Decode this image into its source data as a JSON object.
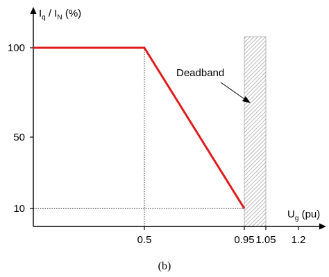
{
  "chart_data": {
    "type": "line",
    "xlabel": {
      "base": "U",
      "sub": "g",
      "rest": " (pu)"
    },
    "ylabel": {
      "a_base": "I",
      "a_sub": "q",
      "sep": " / ",
      "b_base": "I",
      "b_sub": "N",
      "rest": " (%)"
    },
    "x_ticks": [
      "0.5",
      "0.95",
      "1.05",
      "1.2"
    ],
    "x_tick_values": [
      0.5,
      0.95,
      1.05,
      1.2
    ],
    "y_ticks": [
      "100",
      "50",
      "10"
    ],
    "y_tick_values": [
      100,
      50,
      10
    ],
    "series": [
      {
        "color": "#e01b1b",
        "x": [
          0,
          0.5,
          0.95
        ],
        "y": [
          100,
          100,
          10
        ]
      }
    ],
    "reference_lines": [
      {
        "x": [
          0.5,
          0.5
        ],
        "y": [
          0,
          100
        ]
      },
      {
        "x": [
          0,
          0.95
        ],
        "y": [
          10,
          10
        ]
      }
    ],
    "deadband": {
      "x_from": 0.95,
      "x_to": 1.05,
      "label": "Deadband"
    },
    "caption": "(b)"
  }
}
